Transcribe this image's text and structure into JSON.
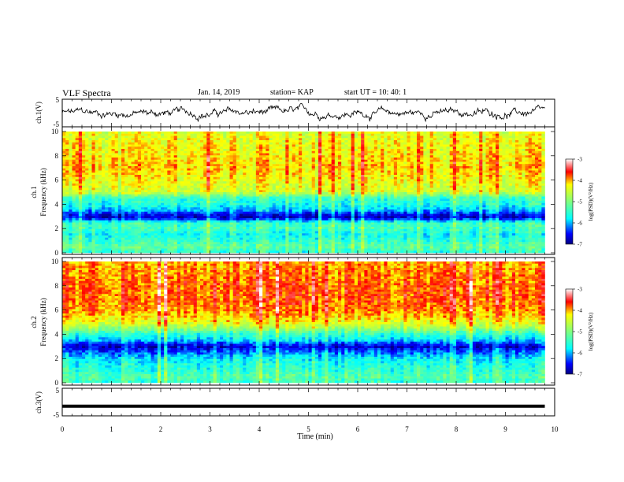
{
  "header": {
    "title": "VLF Spectra",
    "date": "Jan. 14, 2019",
    "station": "station= KAP",
    "start": "start  UT =  10: 40: 1"
  },
  "chart_data": [
    {
      "type": "line",
      "name": "ch1-waveform",
      "ylabel": "ch.1(V)",
      "xlim": [
        0,
        10
      ],
      "ylim": [
        -5,
        5
      ],
      "yticks": [
        "5",
        "-5"
      ],
      "description_values": {
        "x_end": 9.8,
        "approx_level": 0,
        "amplitude": 1
      }
    },
    {
      "type": "heatmap",
      "name": "ch1-spectrogram",
      "ylabel": "ch.1",
      "ylabel2": "Frequency (kHz)",
      "xlim": [
        0,
        10
      ],
      "ylim": [
        0,
        10
      ],
      "yticks": [
        "0",
        "2",
        "4",
        "6",
        "8",
        "10"
      ],
      "colorbar": {
        "label": "log(PSD)(V²/Hz)",
        "range": [
          -7,
          -3
        ],
        "ticks": [
          "-3",
          "-4",
          "-5",
          "-6",
          "-7"
        ]
      },
      "levels_by_freq_khz": [
        [
          0,
          -5.6
        ],
        [
          0.5,
          -5.2
        ],
        [
          1,
          -5.5
        ],
        [
          1.5,
          -5.7
        ],
        [
          2,
          -5.4
        ],
        [
          2.5,
          -5.5
        ],
        [
          2.8,
          -6.5
        ],
        [
          3,
          -6.8
        ],
        [
          3.5,
          -6.0
        ],
        [
          4,
          -5.6
        ],
        [
          4.5,
          -5.5
        ],
        [
          5,
          -4.5
        ],
        [
          6,
          -4.3
        ],
        [
          7,
          -4.1
        ],
        [
          8,
          -4.2
        ],
        [
          9,
          -4.3
        ],
        [
          10,
          -4.4
        ]
      ]
    },
    {
      "type": "heatmap",
      "name": "ch2-spectrogram",
      "ylabel": "ch.2",
      "ylabel2": "Frequency (kHz)",
      "xlim": [
        0,
        10
      ],
      "ylim": [
        0,
        10
      ],
      "yticks": [
        "0",
        "2",
        "4",
        "6",
        "8",
        "10"
      ],
      "colorbar": {
        "label": "log(PSD)(V²/Hz)",
        "range": [
          -7,
          -3
        ],
        "ticks": [
          "-3",
          "-4",
          "-5",
          "-6",
          "-7"
        ]
      },
      "levels_by_freq_khz": [
        [
          0,
          -5.5
        ],
        [
          0.5,
          -5.3
        ],
        [
          1,
          -5.5
        ],
        [
          1.5,
          -5.6
        ],
        [
          2,
          -5.8
        ],
        [
          2.5,
          -6.2
        ],
        [
          3,
          -6.7
        ],
        [
          3.5,
          -5.9
        ],
        [
          4,
          -5.5
        ],
        [
          4.5,
          -4.8
        ],
        [
          5,
          -4.3
        ],
        [
          6,
          -3.9
        ],
        [
          7,
          -3.8
        ],
        [
          8,
          -3.8
        ],
        [
          9,
          -3.9
        ],
        [
          10,
          -4.0
        ]
      ]
    },
    {
      "type": "line",
      "name": "ch3-waveform",
      "ylabel": "ch.3(V)",
      "xlim": [
        0,
        10
      ],
      "ylim": [
        -5,
        5
      ],
      "yticks": [
        "5",
        "-5"
      ],
      "description_values": {
        "x_end": 9.8,
        "approx_level": -1.5
      }
    }
  ],
  "xaxis": {
    "label": "Time (min)",
    "ticks": [
      "0",
      "1",
      "2",
      "3",
      "4",
      "5",
      "6",
      "7",
      "8",
      "9",
      "10"
    ]
  },
  "colors": [
    "#00007f",
    "#0000ff",
    "#00ffff",
    "#7fff7f",
    "#ffff00",
    "#ff7f00",
    "#ff0000",
    "#ffffff"
  ]
}
